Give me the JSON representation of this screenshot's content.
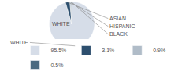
{
  "chart_data": {
    "type": "pie",
    "categories": [
      "WHITE",
      "ASIAN",
      "HISPANIC",
      "BLACK"
    ],
    "values": [
      95.5,
      3.1,
      0.9,
      0.5
    ],
    "colors": [
      "#d6dde8",
      "#2d4f6e",
      "#b0bcc8",
      "#4a6a80"
    ],
    "value_labels": [
      "95.5%",
      "3.1%",
      "0.9%",
      "0.5%"
    ],
    "legend": "bottom",
    "annotations": [
      "WHITE"
    ]
  }
}
